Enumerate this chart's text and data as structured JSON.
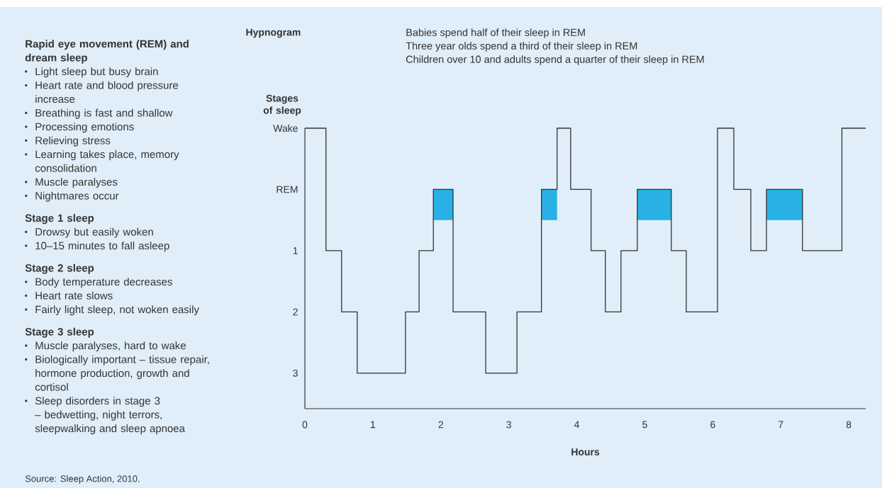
{
  "chart_data": {
    "type": "step",
    "title": "Hypnogram",
    "xlabel": "Hours",
    "ylabel": "Stages of sleep",
    "xlim": [
      0,
      8.25
    ],
    "xticks": [
      0,
      1,
      2,
      3,
      4,
      5,
      6,
      7,
      8
    ],
    "ylim": [
      3.58,
      -1
    ],
    "yticks": [
      {
        "value": -1,
        "label": "Wake"
      },
      {
        "value": 0,
        "label": "REM"
      },
      {
        "value": 1,
        "label": "1"
      },
      {
        "value": 2,
        "label": "2"
      },
      {
        "value": 3,
        "label": "3"
      }
    ],
    "series": [
      {
        "type": "step",
        "color": "#333333",
        "x": [
          0,
          0.31,
          0.54,
          0.77,
          1.48,
          1.68,
          1.89,
          2.18,
          2.66,
          3.12,
          3.48,
          3.71,
          3.91,
          4.21,
          4.42,
          4.65,
          4.89,
          5.39,
          5.61,
          6.07,
          6.31,
          6.56,
          6.79,
          7.32,
          7.9,
          8.25
        ],
        "values": [
          -1,
          1,
          2,
          3,
          2,
          1,
          0,
          2,
          3,
          2,
          0,
          -1,
          0,
          1,
          2,
          1,
          0,
          1,
          2,
          -1,
          0,
          1,
          0,
          1,
          -1,
          -1
        ],
        "lower": [
          null,
          null,
          null,
          null,
          null,
          null,
          0.5,
          0.5,
          null,
          null,
          0.5,
          0.5,
          null,
          null,
          null,
          null,
          0.5,
          0.5,
          null,
          null,
          null,
          null,
          0.5,
          0.5,
          null,
          null
        ],
        "upper": [
          null,
          null,
          null,
          null,
          null,
          null,
          0,
          0,
          null,
          null,
          0,
          0,
          null,
          null,
          null,
          null,
          0,
          0,
          null,
          null,
          null,
          null,
          0,
          0,
          null,
          null
        ]
      }
    ],
    "annotations": [
      "Rapid eye movement (REM) and dream sleep",
      "Light sleep but busy brain",
      "Heart rate and blood pressure increase",
      "Breathing is fast and shallow",
      "Processing emotions",
      "Relieving stress",
      "Learning takes place, memory consolidation",
      "Muscle paralyses",
      "Nightmares occur",
      "Stage 1 sleep",
      "Drowsy but easily woken",
      "10–15 minutes to fall asleep",
      "Stage 2 sleep",
      "Body temperature decreases",
      "Heart rate slows",
      "Fairly light sleep, not woken easily",
      "Stage 3 sleep",
      "Muscle paralyses, hard to wake",
      "Biologically important – tissue repair, hormone production, growth and cortisol",
      "Sleep disorders in stage 3 – bedwetting, night terrors, sleepwalking and sleep apnoea",
      "Babies spend half of their sleep in REM",
      "Three year olds spend a third of their sleep in REM",
      "Children over 10 and adults spend a quarter of their sleep in REM",
      "Source: Sleep Action, 2010."
    ]
  }
}
